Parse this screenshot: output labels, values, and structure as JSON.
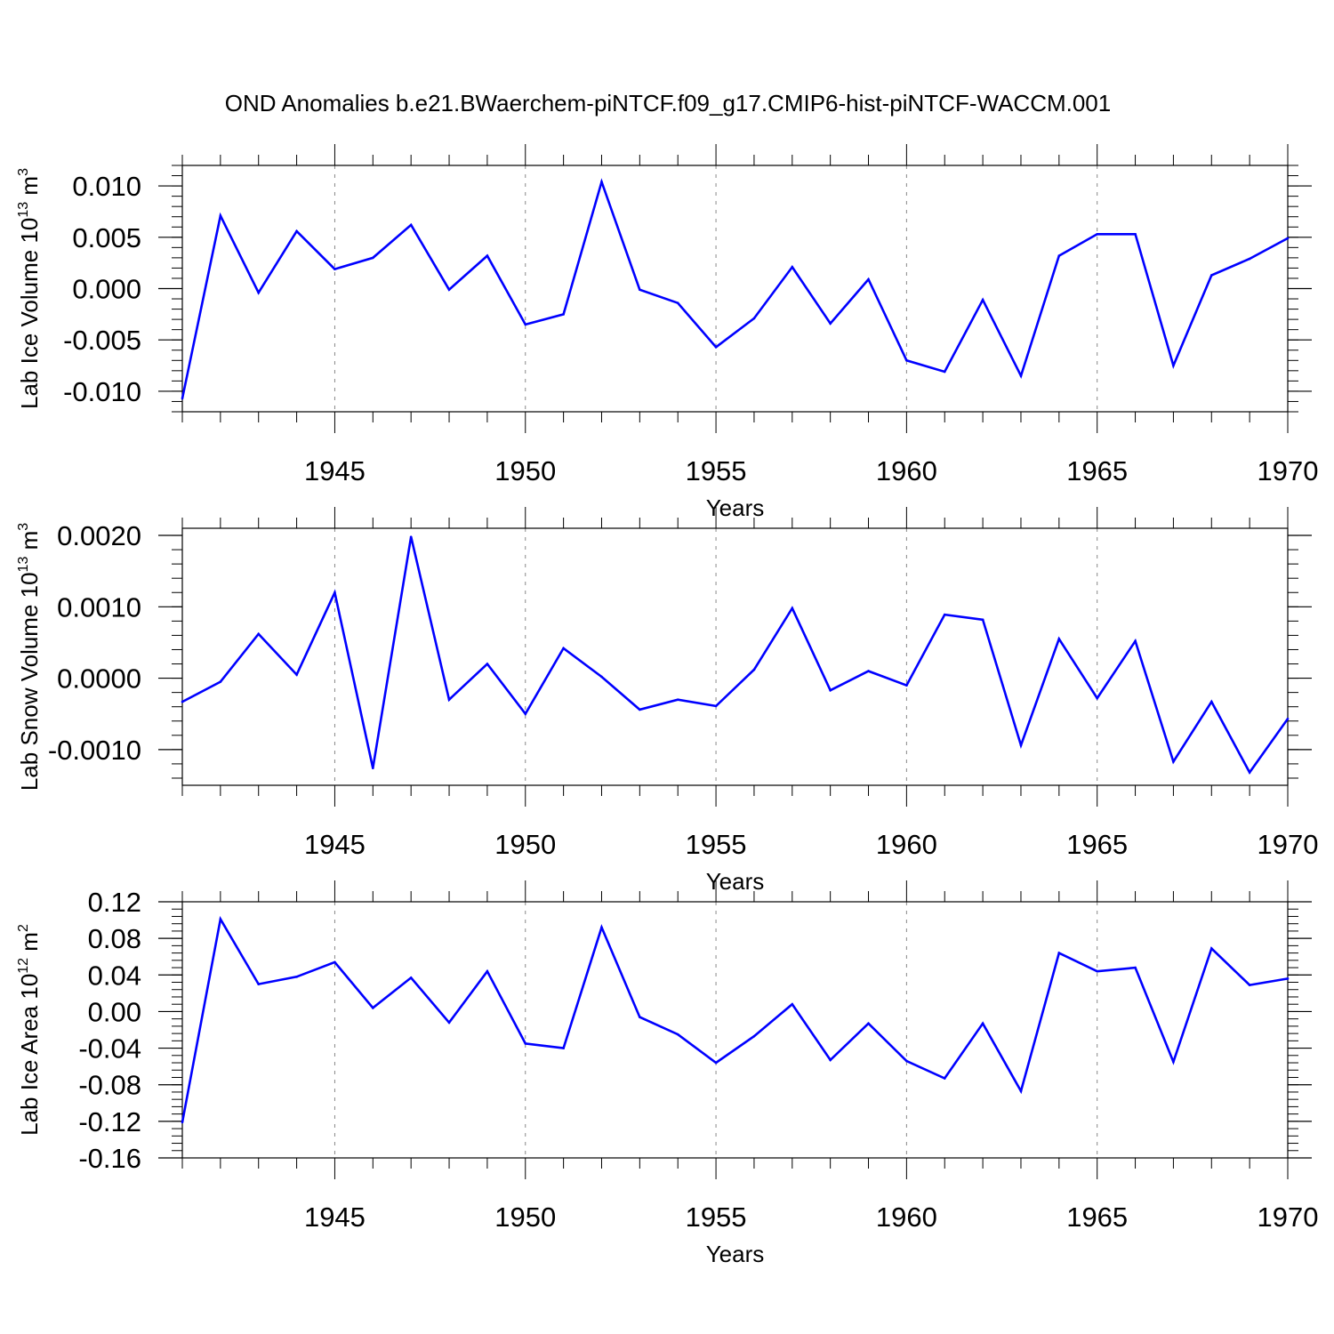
{
  "title": "OND Anomalies b.e21.BWaerchem-piNTCF.f09_g17.CMIP6-hist-piNTCF-WACCM.001",
  "colors": {
    "line": "#0000ff",
    "axis": "#000000",
    "grid": "#888888"
  },
  "chart_data": [
    {
      "type": "line",
      "title": "OND Anomalies b.e21.BWaerchem-piNTCF.f09_g17.CMIP6-hist-piNTCF-WACCM.001",
      "ylabel": "Lab Ice Volume 10",
      "ylabel_exp": "13",
      "ylabel_unit": " m",
      "ylabel_unit_exp": "3",
      "xlabel": "Years",
      "xlim": [
        1941,
        1970
      ],
      "ylim": [
        -0.012,
        0.012
      ],
      "xticks": [
        1945,
        1950,
        1955,
        1960,
        1965,
        1970
      ],
      "xtick_labels": [
        "1945",
        "1950",
        "1955",
        "1960",
        "1965",
        "1970"
      ],
      "yticks": [
        -0.01,
        -0.005,
        0.0,
        0.005,
        0.01
      ],
      "ytick_labels": [
        "-0.010",
        "-0.005",
        "0.000",
        "0.005",
        "0.010"
      ],
      "grid": "x-dashed",
      "x": [
        1941,
        1942,
        1943,
        1944,
        1945,
        1946,
        1947,
        1948,
        1949,
        1950,
        1951,
        1952,
        1953,
        1954,
        1955,
        1956,
        1957,
        1958,
        1959,
        1960,
        1961,
        1962,
        1963,
        1964,
        1965,
        1966,
        1967,
        1968,
        1969,
        1970
      ],
      "values": [
        -0.0107,
        0.0071,
        -0.0004,
        0.0056,
        0.0019,
        0.003,
        0.0062,
        -0.0001,
        0.0032,
        -0.0035,
        -0.0025,
        0.0104,
        -0.0001,
        -0.0014,
        -0.0057,
        -0.0029,
        0.0021,
        -0.0034,
        0.0009,
        -0.007,
        -0.0081,
        -0.0011,
        -0.0085,
        0.0032,
        0.0053,
        0.0053,
        -0.0075,
        0.0013,
        0.0029,
        0.0049
      ]
    },
    {
      "type": "line",
      "ylabel": "Lab Snow Volume 10",
      "ylabel_exp": "13",
      "ylabel_unit": " m",
      "ylabel_unit_exp": "3",
      "xlabel": "Years",
      "xlim": [
        1941,
        1970
      ],
      "ylim": [
        -0.0015,
        0.0021
      ],
      "xticks": [
        1945,
        1950,
        1955,
        1960,
        1965,
        1970
      ],
      "xtick_labels": [
        "1945",
        "1950",
        "1955",
        "1960",
        "1965",
        "1970"
      ],
      "yticks": [
        -0.001,
        0.0,
        0.001,
        0.002
      ],
      "ytick_labels": [
        "-0.0010",
        "0.0000",
        "0.0010",
        "0.0020"
      ],
      "grid": "x-dashed",
      "x": [
        1941,
        1942,
        1943,
        1944,
        1945,
        1946,
        1947,
        1948,
        1949,
        1950,
        1951,
        1952,
        1953,
        1954,
        1955,
        1956,
        1957,
        1958,
        1959,
        1960,
        1961,
        1962,
        1963,
        1964,
        1965,
        1966,
        1967,
        1968,
        1969,
        1970
      ],
      "values": [
        -0.00033,
        -5e-05,
        0.00062,
        5e-05,
        0.0012,
        -0.00126,
        0.00198,
        -0.0003,
        0.0002,
        -0.0005,
        0.00042,
        2e-05,
        -0.00044,
        -0.0003,
        -0.00039,
        0.00012,
        0.00098,
        -0.00017,
        0.0001,
        -0.0001,
        0.00089,
        0.00082,
        -0.00094,
        0.00055,
        -0.00028,
        0.00052,
        -0.00117,
        -0.00033,
        -0.00132,
        -0.00057
      ]
    },
    {
      "type": "line",
      "ylabel": "Lab Ice Area 10",
      "ylabel_exp": "12",
      "ylabel_unit": " m",
      "ylabel_unit_exp": "2",
      "xlabel": "Years",
      "xlim": [
        1941,
        1970
      ],
      "ylim": [
        -0.16,
        0.12
      ],
      "xticks": [
        1945,
        1950,
        1955,
        1960,
        1965,
        1970
      ],
      "xtick_labels": [
        "1945",
        "1950",
        "1955",
        "1960",
        "1965",
        "1970"
      ],
      "yticks": [
        -0.16,
        -0.12,
        -0.08,
        -0.04,
        0.0,
        0.04,
        0.08,
        0.12
      ],
      "ytick_labels": [
        "-0.16",
        "-0.12",
        "-0.08",
        "-0.04",
        "0.00",
        "0.04",
        "0.08",
        "0.12"
      ],
      "grid": "x-dashed",
      "x": [
        1941,
        1942,
        1943,
        1944,
        1945,
        1946,
        1947,
        1948,
        1949,
        1950,
        1951,
        1952,
        1953,
        1954,
        1955,
        1956,
        1957,
        1958,
        1959,
        1960,
        1961,
        1962,
        1963,
        1964,
        1965,
        1966,
        1967,
        1968,
        1969,
        1970
      ],
      "values": [
        -0.121,
        0.101,
        0.03,
        0.038,
        0.054,
        0.004,
        0.037,
        -0.012,
        0.044,
        -0.035,
        -0.04,
        0.092,
        -0.006,
        -0.025,
        -0.056,
        -0.027,
        0.008,
        -0.053,
        -0.013,
        -0.054,
        -0.073,
        -0.013,
        -0.087,
        0.064,
        0.044,
        0.048,
        -0.055,
        0.069,
        0.029,
        0.036
      ]
    }
  ]
}
